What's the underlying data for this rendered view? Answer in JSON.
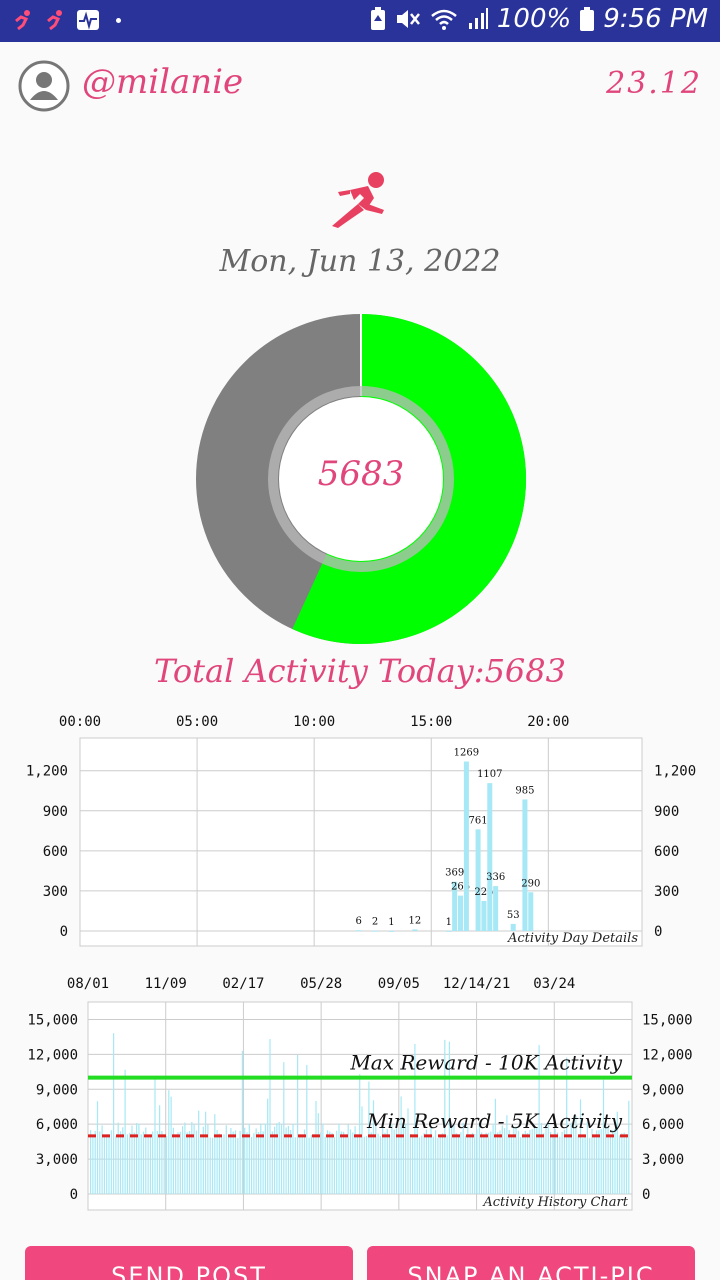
{
  "status_bar": {
    "battery_text": "100%",
    "time": "9:56 PM"
  },
  "header": {
    "username": "@milanie",
    "balance": "23.12"
  },
  "date": "Mon, Jun 13, 2022",
  "donut": {
    "center_value": "5683",
    "fraction_achieved": 0.5683,
    "achieved_color": "#00ff00",
    "remaining_color": "#808080"
  },
  "total_label": "Total Activity Today:5683",
  "chart_data": [
    {
      "type": "bar",
      "x_ticks": [
        "00:00",
        "05:00",
        "10:00",
        "15:00",
        "20:00"
      ],
      "x_range_hours": [
        0,
        24
      ],
      "y_ticks": [
        "0",
        "300",
        "600",
        "900",
        "1,200"
      ],
      "ylim": [
        0,
        1400
      ],
      "annotation": "Activity Day Details",
      "bar_color": "#a6e8f5",
      "points": [
        {
          "hour": 11.9,
          "value": 6,
          "label": "6"
        },
        {
          "hour": 12.6,
          "value": 2,
          "label": "2"
        },
        {
          "hour": 13.3,
          "value": 1,
          "label": "1"
        },
        {
          "hour": 14.3,
          "value": 12,
          "label": "12"
        },
        {
          "hour": 15.75,
          "value": 1,
          "label": "1"
        },
        {
          "hour": 16.0,
          "value": 369,
          "label": "369"
        },
        {
          "hour": 16.25,
          "value": 265,
          "label": "265"
        },
        {
          "hour": 16.5,
          "value": 1269,
          "label": "1269"
        },
        {
          "hour": 17.0,
          "value": 761,
          "label": "761"
        },
        {
          "hour": 17.25,
          "value": 225,
          "label": "225"
        },
        {
          "hour": 17.5,
          "value": 1107,
          "label": "1107"
        },
        {
          "hour": 17.75,
          "value": 336,
          "label": "336"
        },
        {
          "hour": 18.5,
          "value": 53,
          "label": "53"
        },
        {
          "hour": 19.0,
          "value": 985,
          "label": "985"
        },
        {
          "hour": 19.25,
          "value": 290,
          "label": "290"
        }
      ]
    },
    {
      "type": "bar",
      "x_ticks": [
        "08/01",
        "11/09",
        "02/17",
        "05/28",
        "09/05",
        "12/14/21",
        "03/24"
      ],
      "y_ticks": [
        "0",
        "3,000",
        "6,000",
        "9,000",
        "12,000",
        "15,000"
      ],
      "ylim": [
        0,
        16500
      ],
      "annotation": "Activity History Chart",
      "bar_color": "#a6e8f5",
      "max_line": {
        "value": 10000,
        "label": "Max Reward - 10K Activity",
        "color": "#22dd22"
      },
      "min_line": {
        "value": 5000,
        "label": "Min Reward - 5K Activity",
        "color": "#dd2222"
      }
    }
  ],
  "buttons": {
    "send_post": "SEND POST",
    "snap_pic": "SNAP AN ACTI-PIC"
  }
}
